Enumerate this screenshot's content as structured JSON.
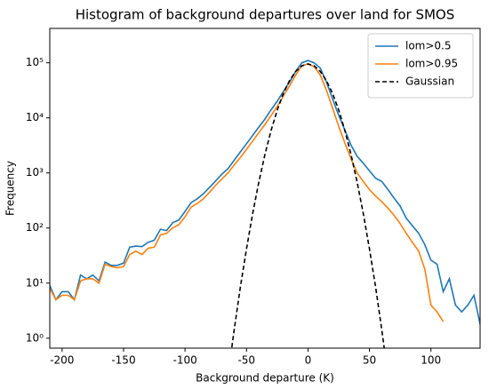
{
  "chart_data": {
    "type": "line",
    "title": "Histogram of background departures over land for SMOS",
    "xlabel": "Background departure (K)",
    "ylabel": "Frequency",
    "yscale": "log",
    "legend": "upper right",
    "x": [
      -210,
      -205,
      -200,
      -195,
      -190,
      -185,
      -180,
      -175,
      -170,
      -165,
      -160,
      -155,
      -150,
      -145,
      -140,
      -135,
      -130,
      -125,
      -120,
      -115,
      -110,
      -105,
      -100,
      -95,
      -90,
      -85,
      -80,
      -75,
      -70,
      -65,
      -60,
      -55,
      -50,
      -45,
      -40,
      -35,
      -30,
      -25,
      -20,
      -15,
      -10,
      -5,
      0,
      5,
      10,
      15,
      20,
      25,
      30,
      35,
      40,
      45,
      50,
      55,
      60,
      65,
      70,
      75,
      80,
      85,
      90,
      95,
      100,
      105,
      110,
      115,
      120,
      125,
      130,
      135,
      140
    ],
    "series": [
      {
        "name": "lom>0.5",
        "color": "#1f77b4",
        "dash": "solid",
        "values": [
          9,
          5,
          7,
          7,
          5,
          14,
          12,
          14,
          11,
          24,
          21,
          21,
          23,
          45,
          47,
          46,
          55,
          60,
          95,
          90,
          125,
          140,
          200,
          290,
          340,
          420,
          550,
          720,
          950,
          1200,
          1700,
          2400,
          3400,
          4800,
          6800,
          9500,
          14000,
          20000,
          30000,
          45000,
          70000,
          100000,
          110000,
          100000,
          80000,
          45000,
          22000,
          11000,
          6000,
          3200,
          2000,
          1500,
          1100,
          800,
          700,
          500,
          350,
          250,
          150,
          110,
          80,
          50,
          26,
          22,
          7,
          12,
          4,
          3,
          4,
          6,
          1.8
        ]
      },
      {
        "name": "lom>0.95",
        "color": "#ff7f0e",
        "dash": "solid",
        "values": [
          8,
          5,
          6,
          6,
          5,
          11,
          12,
          12,
          10,
          22,
          20,
          19,
          20,
          33,
          38,
          33,
          43,
          45,
          75,
          80,
          100,
          115,
          160,
          240,
          280,
          340,
          450,
          600,
          780,
          1000,
          1400,
          1900,
          2700,
          3800,
          5400,
          7600,
          11000,
          16000,
          25000,
          38000,
          60000,
          88000,
          95000,
          85000,
          60000,
          32000,
          15000,
          7000,
          3500,
          1800,
          1000,
          700,
          500,
          380,
          300,
          230,
          170,
          120,
          80,
          55,
          38,
          18,
          4,
          3,
          2,
          null,
          null,
          null,
          null,
          null,
          null
        ]
      },
      {
        "name": "Gaussian",
        "color": "#000000",
        "dash": "dashed",
        "values": [
          null,
          null,
          null,
          null,
          null,
          null,
          null,
          null,
          null,
          null,
          null,
          null,
          null,
          null,
          null,
          null,
          null,
          null,
          null,
          null,
          null,
          null,
          null,
          null,
          null,
          null,
          null,
          null,
          null,
          0.21,
          1.42,
          8.39,
          42.4,
          183,
          681,
          2166,
          5910,
          13800,
          27640,
          47450,
          69750,
          87950,
          95000,
          87950,
          69750,
          47450,
          27640,
          13800,
          5910,
          2166,
          681,
          183,
          42.4,
          8.39,
          1.42,
          0.21,
          null,
          null,
          null,
          null,
          null,
          null,
          null,
          null,
          null,
          null,
          null,
          null,
          null,
          null,
          null
        ]
      }
    ],
    "xlim": [
      -210,
      140
    ],
    "xticks": [
      -200,
      -150,
      -100,
      -50,
      0,
      50,
      100
    ],
    "ylim": [
      0.66,
      420000
    ],
    "yticks": [
      {
        "value": 1,
        "label": "10⁰"
      },
      {
        "value": 10,
        "label": "10¹"
      },
      {
        "value": 100,
        "label": "10²"
      },
      {
        "value": 1000,
        "label": "10³"
      },
      {
        "value": 10000,
        "label": "10⁴"
      },
      {
        "value": 100000,
        "label": "10⁵"
      }
    ]
  }
}
